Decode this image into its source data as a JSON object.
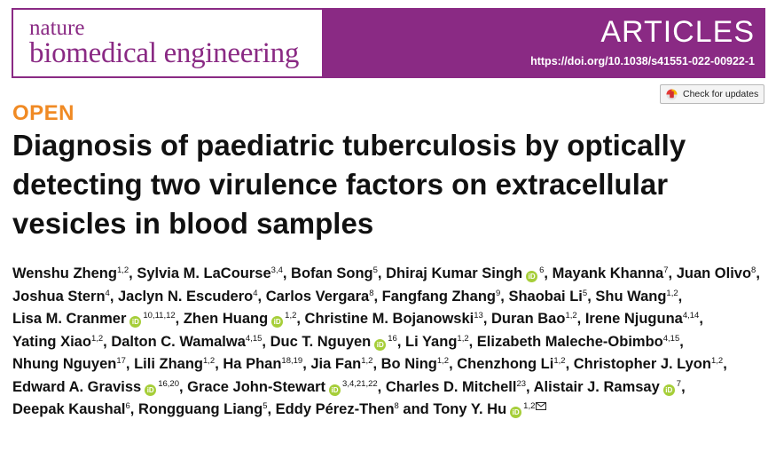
{
  "journal": {
    "line1": "nature",
    "line2": "biomedical engineering"
  },
  "banner": {
    "section": "ARTICLES",
    "doi": "https://doi.org/10.1038/s41551-022-00922-1"
  },
  "check_updates": {
    "label": "Check for updates",
    "icon": "crossmark-icon"
  },
  "access": "OPEN",
  "title": "Diagnosis of paediatric tuberculosis by optically detecting two virulence factors on extracellular vesicles in blood samples",
  "colors": {
    "brand": "#8a2a84",
    "open_label": "#f08a24",
    "orcid": "#a6ce39"
  },
  "authors": [
    {
      "name": "Wenshu Zheng",
      "aff": "1,2",
      "orcid": false,
      "sep": ", "
    },
    {
      "name": "Sylvia M. LaCourse",
      "aff": "3,4",
      "orcid": false,
      "sep": ", "
    },
    {
      "name": "Bofan Song",
      "aff": "5",
      "orcid": false,
      "sep": ", "
    },
    {
      "name": "Dhiraj Kumar Singh",
      "aff": "6",
      "orcid": true,
      "sep": ", "
    },
    {
      "name": "Mayank Khanna",
      "aff": "7",
      "orcid": false,
      "sep": ", "
    },
    {
      "name": "Juan Olivo",
      "aff": "8",
      "orcid": false,
      "sep": ", "
    },
    {
      "name": "Joshua Stern",
      "aff": "4",
      "orcid": false,
      "sep": ", "
    },
    {
      "name": "Jaclyn N. Escudero",
      "aff": "4",
      "orcid": false,
      "sep": ", "
    },
    {
      "name": "Carlos Vergara",
      "aff": "8",
      "orcid": false,
      "sep": ", "
    },
    {
      "name": "Fangfang Zhang",
      "aff": "9",
      "orcid": false,
      "sep": ", "
    },
    {
      "name": "Shaobai Li",
      "aff": "5",
      "orcid": false,
      "sep": ", "
    },
    {
      "name": "Shu Wang",
      "aff": "1,2",
      "orcid": false,
      "sep": ", "
    },
    {
      "name": "Lisa M. Cranmer",
      "aff": "10,11,12",
      "orcid": true,
      "sep": ", "
    },
    {
      "name": "Zhen Huang",
      "aff": "1,2",
      "orcid": true,
      "sep": ", "
    },
    {
      "name": "Christine M. Bojanowski",
      "aff": "13",
      "orcid": false,
      "sep": ", "
    },
    {
      "name": "Duran Bao",
      "aff": "1,2",
      "orcid": false,
      "sep": ", "
    },
    {
      "name": "Irene Njuguna",
      "aff": "4,14",
      "orcid": false,
      "sep": ", "
    },
    {
      "name": "Yating Xiao",
      "aff": "1,2",
      "orcid": false,
      "sep": ", "
    },
    {
      "name": "Dalton C. Wamalwa",
      "aff": "4,15",
      "orcid": false,
      "sep": ", "
    },
    {
      "name": "Duc T. Nguyen",
      "aff": "16",
      "orcid": true,
      "sep": ", "
    },
    {
      "name": "Li Yang",
      "aff": "1,2",
      "orcid": false,
      "sep": ", "
    },
    {
      "name": "Elizabeth Maleche-Obimbo",
      "aff": "4,15",
      "orcid": false,
      "sep": ", "
    },
    {
      "name": "Nhung Nguyen",
      "aff": "17",
      "orcid": false,
      "sep": ", "
    },
    {
      "name": "Lili Zhang",
      "aff": "1,2",
      "orcid": false,
      "sep": ", "
    },
    {
      "name": "Ha Phan",
      "aff": "18,19",
      "orcid": false,
      "sep": ", "
    },
    {
      "name": "Jia Fan",
      "aff": "1,2",
      "orcid": false,
      "sep": ", "
    },
    {
      "name": "Bo Ning",
      "aff": "1,2",
      "orcid": false,
      "sep": ", "
    },
    {
      "name": "Chenzhong Li",
      "aff": "1,2",
      "orcid": false,
      "sep": ", "
    },
    {
      "name": "Christopher J. Lyon",
      "aff": "1,2",
      "orcid": false,
      "sep": ", "
    },
    {
      "name": "Edward A. Graviss",
      "aff": "16,20",
      "orcid": true,
      "sep": ", "
    },
    {
      "name": "Grace John-Stewart",
      "aff": "3,4,21,22",
      "orcid": true,
      "sep": ", "
    },
    {
      "name": "Charles D. Mitchell",
      "aff": "23",
      "orcid": false,
      "sep": ", "
    },
    {
      "name": "Alistair J. Ramsay",
      "aff": "7",
      "orcid": true,
      "sep": ", "
    },
    {
      "name": "Deepak Kaushal",
      "aff": "6",
      "orcid": false,
      "sep": ", "
    },
    {
      "name": "Rongguang Liang",
      "aff": "5",
      "orcid": false,
      "sep": ", "
    },
    {
      "name": "Eddy Pérez-Then",
      "aff": "8",
      "orcid": false,
      "sep": " "
    },
    {
      "name": "and Tony Y. Hu",
      "aff": "1,2",
      "orcid": true,
      "corresponding": true,
      "sep": ""
    }
  ]
}
